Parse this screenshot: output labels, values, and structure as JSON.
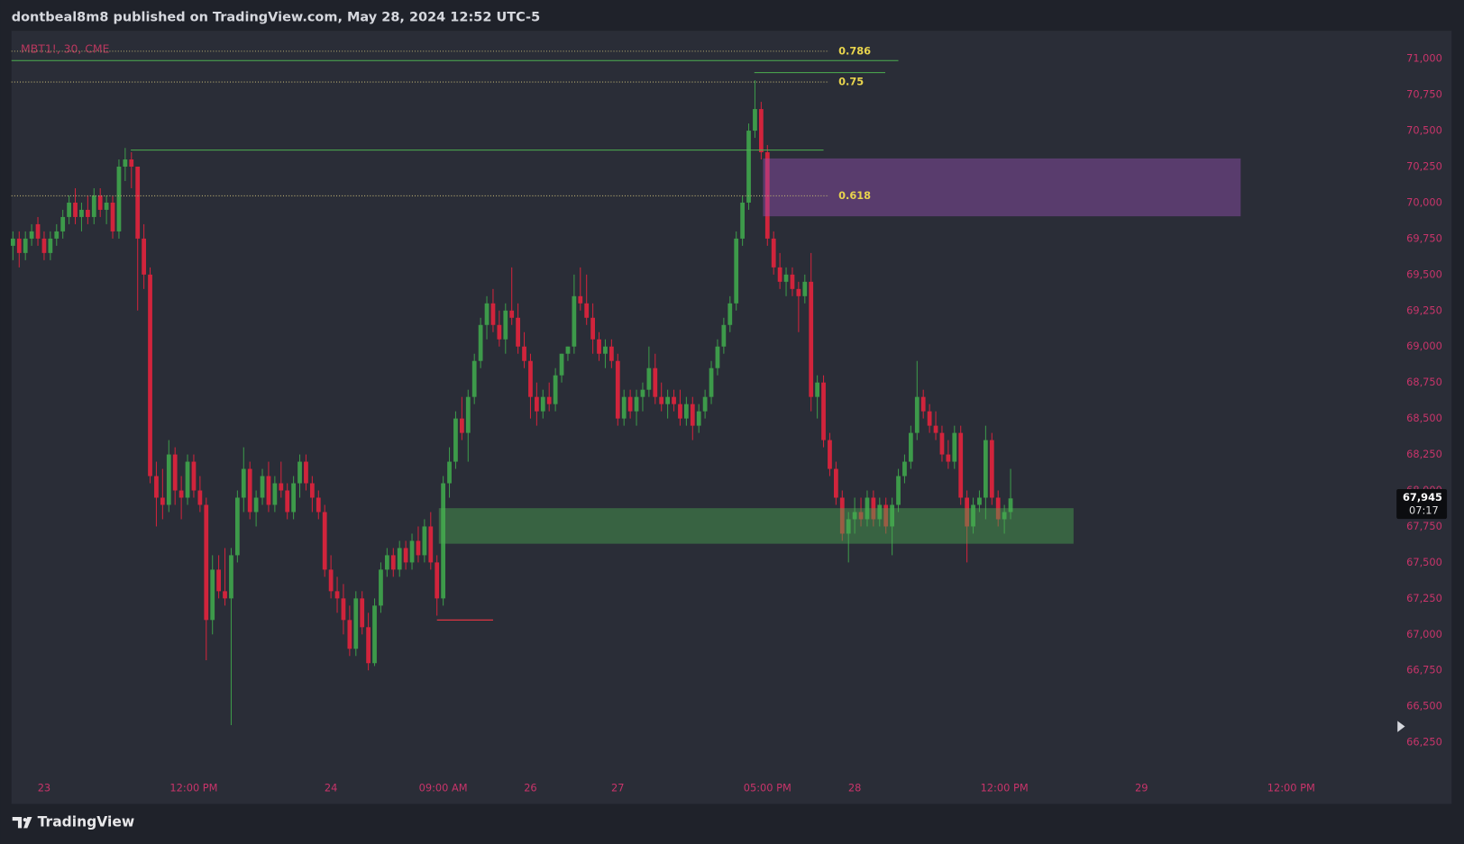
{
  "chart_data": {
    "type": "candlestick",
    "title": "dontbeal8m8 published on TradingView.com, May 28, 2024 12:52 UTC-5",
    "subtitle": "MBT1!, 30, CME",
    "footer": "TradingView",
    "up_color": "#3d9a4a",
    "down_color": "#d1243c",
    "x": [
      0,
      1,
      2,
      3,
      4,
      5,
      6,
      7,
      8,
      9,
      10,
      11,
      12,
      13,
      14,
      15,
      16,
      17,
      18,
      19,
      20,
      21,
      22,
      23,
      24,
      25,
      26,
      27,
      28,
      29,
      30,
      31,
      32,
      33,
      34,
      35,
      36,
      37,
      38,
      39,
      40,
      41,
      42,
      43,
      44,
      45,
      46,
      47,
      48,
      49,
      50,
      51,
      52,
      53,
      54,
      55,
      56,
      57,
      58,
      59,
      60,
      61,
      62,
      63,
      64,
      65,
      66,
      67,
      68,
      69,
      70,
      71,
      72,
      73,
      74,
      75,
      76,
      77,
      78,
      79,
      80,
      81,
      82,
      83,
      84,
      85,
      86,
      87,
      88,
      89,
      90,
      91,
      92,
      93,
      94,
      95,
      96,
      97,
      98,
      99,
      100,
      101,
      102,
      103,
      104,
      105,
      106,
      107,
      108,
      109,
      110,
      111,
      112,
      113,
      114,
      115,
      116,
      117,
      118,
      119,
      120,
      121,
      122,
      123,
      124,
      125,
      126,
      127,
      128,
      129,
      130,
      131,
      132,
      133,
      134,
      135,
      136,
      137,
      138,
      139,
      140,
      141,
      142,
      143,
      144,
      145,
      146,
      147,
      148,
      149,
      150,
      151,
      152,
      153,
      154,
      155,
      156,
      157,
      158,
      159,
      160
    ],
    "open": [
      69700,
      69750,
      69650,
      69750,
      69850,
      69750,
      69650,
      69750,
      69800,
      69900,
      70000,
      69900,
      69950,
      69900,
      70050,
      69950,
      70000,
      69800,
      70250,
      70300,
      70250,
      69750,
      69500,
      68100,
      67950,
      67900,
      68250,
      68000,
      67950,
      68200,
      68000,
      67900,
      67100,
      67450,
      67300,
      67250,
      67550,
      67950,
      68150,
      67850,
      67950,
      68100,
      67900,
      68050,
      68000,
      67850,
      68050,
      68200,
      68050,
      67950,
      67850,
      67450,
      67300,
      67250,
      67100,
      66900,
      67250,
      67050,
      66800,
      67200,
      67450,
      67550,
      67450,
      67600,
      67500,
      67650,
      67550,
      67750,
      67500,
      67250,
      68050,
      68200,
      68500,
      68400,
      68650,
      68900,
      69150,
      69300,
      69150,
      69050,
      69250,
      69200,
      69000,
      68900,
      68650,
      68550,
      68650,
      68600,
      68800,
      68950,
      69000,
      69350,
      69300,
      69200,
      69050,
      68950,
      69000,
      68900,
      68500,
      68650,
      68550,
      68650,
      68700,
      68850,
      68650,
      68600,
      68650,
      68600,
      68500,
      68600,
      68450,
      68550,
      68650,
      68850,
      69000,
      69150,
      69300,
      69750,
      70000,
      70500,
      70650,
      70350,
      69750,
      69550,
      69450,
      69500,
      69400,
      69350,
      69450,
      68650,
      68750,
      68350,
      68150,
      67950,
      67700,
      67800,
      67850,
      67800,
      67950,
      67800,
      67900,
      67750,
      67900,
      68100,
      68200,
      68400,
      68650,
      68550,
      68450,
      68400,
      68250,
      68200,
      68400,
      67950,
      67750,
      67900,
      67950,
      68350,
      67950,
      67800,
      67850
    ],
    "high": [
      69800,
      69800,
      69800,
      69850,
      69900,
      69800,
      69800,
      69850,
      69950,
      70050,
      70100,
      70000,
      70050,
      70100,
      70100,
      70050,
      70050,
      70300,
      70380,
      70350,
      70250,
      69850,
      69550,
      68200,
      68150,
      68350,
      68300,
      68100,
      68250,
      68250,
      68100,
      67950,
      67550,
      67550,
      67600,
      67600,
      68000,
      68300,
      68200,
      68000,
      68150,
      68200,
      68100,
      68200,
      68050,
      68100,
      68250,
      68250,
      68100,
      68000,
      67900,
      67550,
      67400,
      67350,
      67200,
      67300,
      67300,
      67150,
      67250,
      67500,
      67600,
      67600,
      67650,
      67650,
      67700,
      67750,
      67800,
      67850,
      67550,
      68100,
      68300,
      68550,
      68650,
      68700,
      68950,
      69200,
      69350,
      69400,
      69250,
      69300,
      69550,
      69300,
      69100,
      68950,
      68750,
      68700,
      68750,
      68850,
      68950,
      69000,
      69500,
      69550,
      69500,
      69300,
      69100,
      69050,
      69050,
      68950,
      68700,
      68700,
      68700,
      68750,
      69000,
      68950,
      68750,
      68700,
      68700,
      68700,
      68650,
      68650,
      68600,
      68700,
      68900,
      69050,
      69200,
      69350,
      69800,
      70050,
      70550,
      70850,
      70700,
      70400,
      69800,
      69650,
      69550,
      69550,
      69450,
      69500,
      69650,
      68800,
      68800,
      68400,
      68200,
      68000,
      67850,
      67950,
      67950,
      68000,
      68000,
      67950,
      67950,
      67950,
      68150,
      68250,
      68450,
      68900,
      68700,
      68600,
      68550,
      68450,
      68350,
      68450,
      68450,
      68000,
      67950,
      68000,
      68450,
      68400,
      68000,
      67900,
      68150
    ],
    "low": [
      69600,
      69550,
      69600,
      69700,
      69700,
      69600,
      69600,
      69700,
      69750,
      69850,
      69850,
      69800,
      69850,
      69850,
      69900,
      69850,
      69750,
      69750,
      70150,
      70100,
      69250,
      69400,
      68050,
      67750,
      67800,
      67850,
      67900,
      67800,
      67900,
      67950,
      67850,
      66820,
      67000,
      67250,
      67200,
      66370,
      67500,
      67850,
      67800,
      67750,
      67900,
      67850,
      67850,
      67950,
      67800,
      67800,
      67950,
      68000,
      67850,
      67800,
      67400,
      67250,
      67150,
      67000,
      66850,
      66850,
      67000,
      66750,
      66780,
      67150,
      67400,
      67400,
      67400,
      67450,
      67450,
      67500,
      67500,
      67450,
      67130,
      67200,
      67950,
      68150,
      68350,
      68200,
      68600,
      68850,
      69050,
      69100,
      69000,
      68950,
      69150,
      68950,
      68850,
      68500,
      68450,
      68500,
      68550,
      68550,
      68750,
      68900,
      68950,
      69250,
      69150,
      68950,
      68900,
      68850,
      68850,
      68450,
      68450,
      68500,
      68450,
      68550,
      68650,
      68600,
      68550,
      68500,
      68550,
      68450,
      68450,
      68350,
      68400,
      68500,
      68600,
      68800,
      68950,
      69100,
      69250,
      69700,
      69950,
      70450,
      70300,
      69700,
      69500,
      69400,
      69350,
      69350,
      69100,
      69300,
      68550,
      68500,
      68300,
      68100,
      67900,
      67650,
      67500,
      67700,
      67750,
      67750,
      67750,
      67750,
      67700,
      67550,
      67850,
      68050,
      68150,
      68350,
      68500,
      68400,
      68350,
      68200,
      68150,
      68150,
      67900,
      67500,
      67700,
      67850,
      67800,
      67900,
      67750,
      67700,
      67800
    ],
    "close": [
      69750,
      69650,
      69750,
      69800,
      69750,
      69650,
      69750,
      69800,
      69900,
      70000,
      69900,
      69950,
      69900,
      70050,
      69950,
      70000,
      69800,
      70250,
      70300,
      70250,
      69750,
      69500,
      68100,
      67950,
      67900,
      68250,
      68000,
      67950,
      68200,
      68000,
      67900,
      67100,
      67450,
      67300,
      67250,
      67550,
      67950,
      68150,
      67850,
      67950,
      68100,
      67900,
      68050,
      68000,
      67850,
      68050,
      68200,
      68050,
      67950,
      67850,
      67450,
      67300,
      67250,
      67100,
      66900,
      67250,
      67050,
      66800,
      67200,
      67450,
      67550,
      67450,
      67600,
      67500,
      67650,
      67550,
      67750,
      67500,
      67250,
      68050,
      68200,
      68500,
      68400,
      68650,
      68900,
      69150,
      69300,
      69150,
      69050,
      69250,
      69200,
      69000,
      68900,
      68650,
      68550,
      68650,
      68600,
      68800,
      68950,
      69000,
      69350,
      69300,
      69200,
      69050,
      68950,
      69000,
      68900,
      68500,
      68650,
      68550,
      68650,
      68700,
      68850,
      68650,
      68600,
      68650,
      68600,
      68500,
      68600,
      68450,
      68550,
      68650,
      68850,
      69000,
      69150,
      69300,
      69750,
      70000,
      70500,
      70650,
      70350,
      69750,
      69550,
      69450,
      69500,
      69400,
      69350,
      69450,
      68650,
      68750,
      68350,
      68150,
      67950,
      67700,
      67800,
      67850,
      67800,
      67950,
      67800,
      67900,
      67750,
      67900,
      68100,
      68200,
      68400,
      68650,
      68550,
      68450,
      68400,
      68250,
      68200,
      68400,
      67950,
      67750,
      67900,
      67950,
      68350,
      67950,
      67800,
      67850,
      67945
    ],
    "xlim": [
      -0.24,
      221
    ],
    "ylim": [
      66062,
      71194
    ],
    "xticks": [
      {
        "value": 5,
        "label": "23"
      },
      {
        "value": 29,
        "label": "12:00 PM"
      },
      {
        "value": 51,
        "label": "24"
      },
      {
        "value": 69,
        "label": "09:00 AM"
      },
      {
        "value": 83,
        "label": "26"
      },
      {
        "value": 97,
        "label": "27"
      },
      {
        "value": 121,
        "label": "05:00 PM"
      },
      {
        "value": 135,
        "label": "28"
      },
      {
        "value": 159,
        "label": "12:00 PM"
      },
      {
        "value": 181,
        "label": "29"
      },
      {
        "value": 205,
        "label": "12:00 PM"
      }
    ],
    "yticks": [
      {
        "value": 66250,
        "label": "66,250"
      },
      {
        "value": 66500,
        "label": "66,500"
      },
      {
        "value": 66750,
        "label": "66,750"
      },
      {
        "value": 67000,
        "label": "67,000"
      },
      {
        "value": 67250,
        "label": "67,250"
      },
      {
        "value": 67500,
        "label": "67,500"
      },
      {
        "value": 67750,
        "label": "67,750"
      },
      {
        "value": 68000,
        "label": "68,000"
      },
      {
        "value": 68250,
        "label": "68,250"
      },
      {
        "value": 68500,
        "label": "68,500"
      },
      {
        "value": 68750,
        "label": "68,750"
      },
      {
        "value": 69000,
        "label": "69,000"
      },
      {
        "value": 69250,
        "label": "69,250"
      },
      {
        "value": 69500,
        "label": "69,500"
      },
      {
        "value": 69750,
        "label": "69,750"
      },
      {
        "value": 70000,
        "label": "70,000"
      },
      {
        "value": 70250,
        "label": "70,250"
      },
      {
        "value": 70500,
        "label": "70,500"
      },
      {
        "value": 70750,
        "label": "70,750"
      },
      {
        "value": 71000,
        "label": "71,000"
      }
    ],
    "last_price_label": "67,945",
    "countdown": "07:17",
    "fib_color": "#b8ad72",
    "fib_label_color": "#e8d44d",
    "fib_x": [
      -0.24,
      130.9
    ],
    "fib_levels": [
      {
        "label": "0.786",
        "value": 71052
      },
      {
        "label": "0.75",
        "value": 70838
      },
      {
        "label": "0.618",
        "value": 70047
      }
    ],
    "lines": [
      {
        "color": "#4caf50",
        "y": 70987,
        "x": [
          -0.24,
          142
        ]
      },
      {
        "color": "#4caf50",
        "y": 70903,
        "x": [
          118.9,
          139.9
        ]
      },
      {
        "color": "#4caf50",
        "y": 70365,
        "x": [
          18.9,
          130
        ]
      },
      {
        "color": "#f23645",
        "y": 67100,
        "x": [
          68,
          77
        ]
      }
    ],
    "zones": [
      {
        "color": "#9a52b8",
        "ylim": [
          69905,
          70307
        ],
        "x": [
          120.3,
          196.9
        ]
      },
      {
        "color": "#4caf50",
        "ylim": [
          67630,
          67877
        ],
        "x": [
          68.3,
          170.1
        ]
      }
    ]
  }
}
